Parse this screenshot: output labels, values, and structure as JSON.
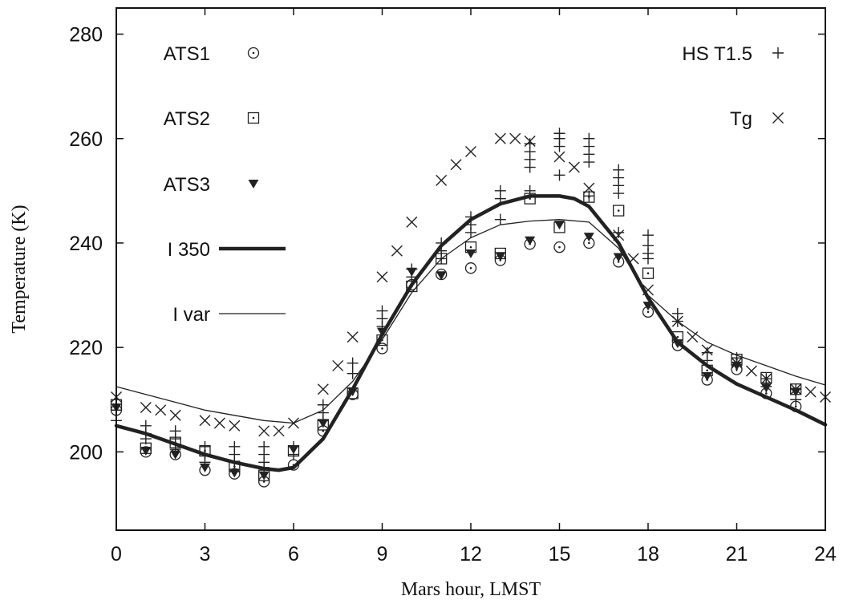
{
  "chart_data": {
    "type": "scatter",
    "xlabel": "Mars hour, LMST",
    "ylabel": "Temperature (K)",
    "xlim": [
      0,
      24
    ],
    "ylim": [
      185,
      285
    ],
    "xticks": [
      0,
      3,
      6,
      9,
      12,
      15,
      18,
      21,
      24
    ],
    "yticks": [
      200,
      220,
      240,
      260,
      280
    ],
    "grid": false,
    "series": [
      {
        "name": "ATS1",
        "kind": "points",
        "marker": "circle-dot",
        "x": [
          0,
          1,
          2,
          3,
          4,
          5,
          6,
          7,
          8,
          9,
          10,
          11,
          12,
          13,
          14,
          15,
          16,
          17,
          18,
          19,
          20,
          21,
          22,
          23
        ],
        "y": [
          208,
          200,
          199.5,
          196.5,
          195.8,
          194.3,
          197.5,
          204,
          211,
          219.8,
          232,
          234,
          235.2,
          236.7,
          239.8,
          239.2,
          240,
          236.4,
          226.8,
          220.4,
          213.8,
          215.8,
          211.2,
          208.7
        ]
      },
      {
        "name": "ATS2",
        "kind": "points",
        "marker": "square-dot",
        "x": [
          0,
          1,
          2,
          3,
          4,
          5,
          6,
          7,
          8,
          9,
          10,
          11,
          12,
          13,
          14,
          15,
          16,
          17,
          18,
          19,
          20,
          21,
          22,
          23
        ],
        "y": [
          209,
          200.7,
          201.8,
          200.2,
          197.2,
          195.5,
          200.2,
          205.2,
          211.2,
          221.4,
          231.7,
          237,
          239.2,
          238,
          248.5,
          243,
          248.8,
          246.2,
          234.2,
          222,
          215.6,
          217.7,
          214.2,
          212
        ]
      },
      {
        "name": "ATS3",
        "kind": "points",
        "marker": "triangle-down",
        "x": [
          0,
          1,
          2,
          3,
          4,
          5,
          6,
          7,
          8,
          9,
          10,
          11,
          12,
          13,
          14,
          15,
          16,
          17,
          18,
          19,
          20,
          21,
          22,
          23
        ],
        "y": [
          208.5,
          200.2,
          199.5,
          197,
          196,
          195.5,
          200.5,
          205.5,
          211.6,
          223,
          234.5,
          233.8,
          238,
          237.5,
          240.5,
          243.5,
          241.2,
          237.3,
          228,
          220.8,
          214.5,
          216.5,
          212.3,
          211.5
        ]
      },
      {
        "name": "HS T1.5",
        "kind": "points",
        "marker": "plus",
        "x": [
          0,
          0,
          1,
          1,
          1,
          2,
          2,
          2,
          3,
          3,
          3,
          4,
          4,
          4,
          5,
          5,
          5,
          5,
          6,
          6,
          7,
          7,
          7,
          8,
          8,
          9,
          9,
          9,
          10,
          10,
          11,
          11,
          11,
          12,
          12,
          12,
          13,
          13,
          13,
          14,
          14,
          14,
          14,
          14,
          15,
          15,
          15,
          15,
          16,
          16,
          16,
          16,
          16,
          17,
          17,
          17,
          17,
          17,
          18,
          18,
          18,
          18,
          19,
          19,
          20,
          20,
          21,
          21,
          22,
          22,
          23,
          23
        ],
        "y": [
          208,
          206,
          205,
          203.5,
          202.5,
          204,
          202.5,
          200.5,
          201,
          199.5,
          198,
          201,
          199.5,
          198,
          201,
          199.5,
          198,
          197,
          201,
          199.5,
          209,
          207.5,
          206,
          217,
          215,
          227,
          225.5,
          224,
          235,
          233.5,
          240,
          238.5,
          237,
          245,
          243.5,
          242,
          250,
          248.5,
          244.5,
          259,
          257.5,
          256,
          254.5,
          250,
          261,
          260,
          258.5,
          253,
          260,
          258.5,
          257,
          255.5,
          249,
          254,
          252.5,
          251,
          249.5,
          242,
          241.5,
          239.5,
          238,
          237,
          226.5,
          225,
          219,
          217.5,
          218,
          216.5,
          214,
          212.5,
          212,
          210
        ]
      },
      {
        "name": "Tg",
        "kind": "points",
        "marker": "cross",
        "x": [
          0,
          1,
          1.5,
          2,
          3,
          3.5,
          4,
          5,
          5.5,
          6,
          7,
          7.5,
          8,
          9,
          9.5,
          10,
          11,
          11.5,
          12,
          13,
          13.5,
          14,
          15,
          15.5,
          16,
          17,
          17.5,
          18,
          19,
          19.5,
          20,
          21,
          21.5,
          22,
          23,
          23.5,
          24
        ],
        "y": [
          210.5,
          208.5,
          208,
          207,
          206,
          205.5,
          205,
          204,
          204,
          205.5,
          212,
          216.5,
          222,
          233.5,
          238.5,
          244,
          252,
          255,
          257.5,
          260,
          260,
          259.5,
          256.5,
          254.5,
          250.5,
          241.5,
          237,
          231,
          225,
          222,
          219.5,
          217,
          215.5,
          214,
          212,
          211.5,
          210.5
        ]
      },
      {
        "name": "I 350",
        "kind": "line",
        "style": "thick",
        "x": [
          0,
          1,
          2,
          3,
          4,
          5,
          5.5,
          6,
          7,
          8,
          9,
          10,
          11,
          12,
          13,
          14,
          14.5,
          15,
          15.5,
          16,
          17,
          18,
          19,
          20,
          21,
          22,
          23,
          24
        ],
        "y": [
          205,
          203.5,
          201.5,
          199.5,
          198,
          196.8,
          196.5,
          197,
          202.5,
          212,
          222.5,
          232,
          239.5,
          244.5,
          247.5,
          249,
          249,
          249,
          248.5,
          247,
          240,
          229.5,
          221,
          216.5,
          213,
          210.5,
          208,
          205.2
        ]
      },
      {
        "name": "I var",
        "kind": "line",
        "style": "thin",
        "x": [
          0,
          1,
          2,
          3,
          4,
          5,
          6,
          7,
          8,
          9,
          10,
          11,
          12,
          13,
          14,
          15,
          16,
          17,
          18,
          19,
          20,
          21,
          22,
          23,
          24
        ],
        "y": [
          212.5,
          211,
          209.5,
          208,
          207,
          206,
          205.5,
          208,
          213.5,
          221.5,
          230.5,
          237,
          241,
          243.5,
          244.2,
          244.5,
          244,
          239,
          230,
          225,
          221,
          218.5,
          216.5,
          214.5,
          212.8
        ]
      }
    ],
    "legend": [
      {
        "label": "ATS1",
        "marker": "circle-dot",
        "position": "left"
      },
      {
        "label": "ATS2",
        "marker": "square-dot",
        "position": "left"
      },
      {
        "label": "ATS3",
        "marker": "triangle-down",
        "position": "left"
      },
      {
        "label": "I 350",
        "marker": "thick-line",
        "position": "left"
      },
      {
        "label": "I var",
        "marker": "thin-line",
        "position": "left"
      },
      {
        "label": "HS T1.5",
        "marker": "plus",
        "position": "top-right"
      },
      {
        "label": "Tg",
        "marker": "cross",
        "position": "top-right"
      }
    ]
  }
}
